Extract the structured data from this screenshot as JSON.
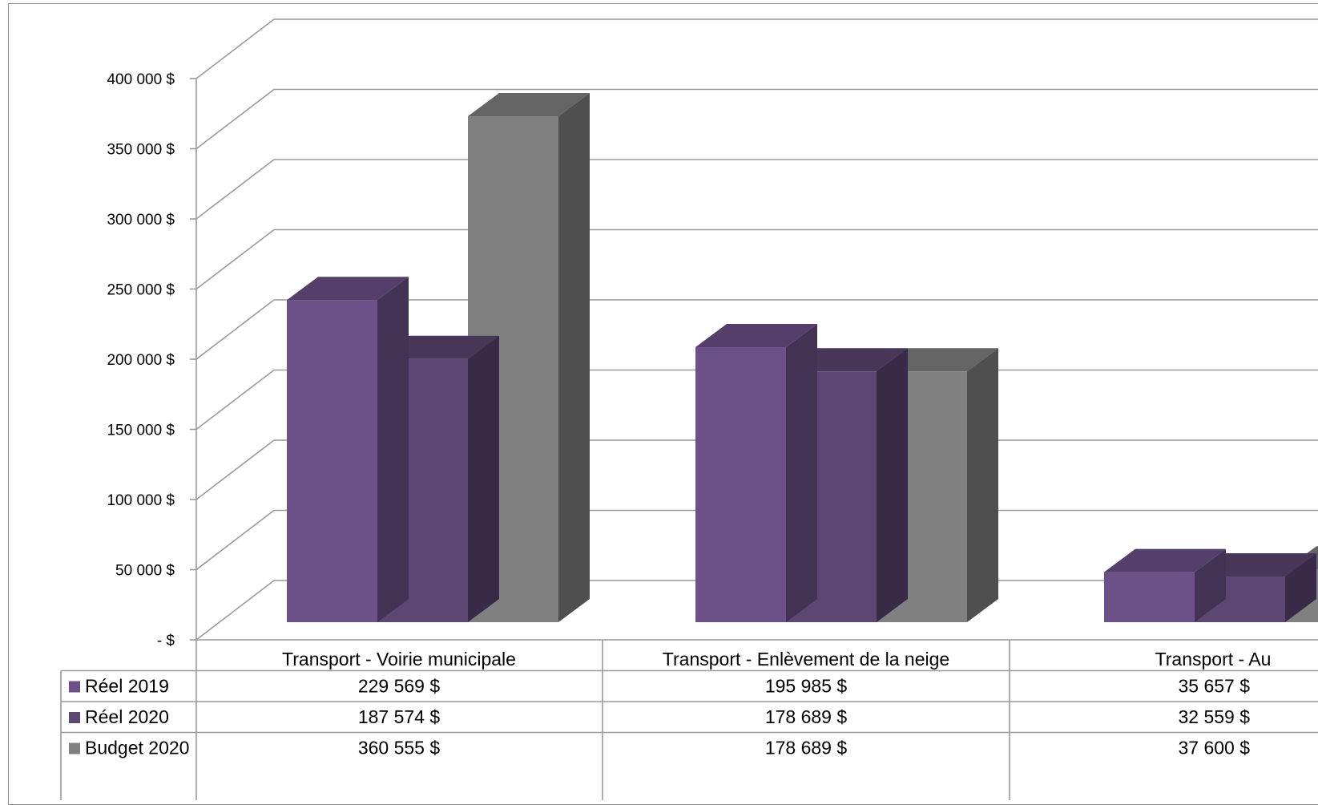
{
  "chart_data": {
    "type": "bar",
    "categories": [
      "Transport - Voirie municipale",
      "Transport - Enlèvement de la neige",
      "Transport - Au"
    ],
    "series": [
      {
        "name": "Réel 2019",
        "values": [
          229569,
          195985,
          35657
        ],
        "color": "#6b5187"
      },
      {
        "name": "Réel 2020",
        "values": [
          187574,
          178689,
          32559
        ],
        "color": "#5c4672"
      },
      {
        "name": "Budget 2020",
        "values": [
          360555,
          178689,
          37600
        ],
        "color": "#808080"
      }
    ],
    "data_table": [
      [
        "229 569  $",
        "195 985  $",
        "35 657  $"
      ],
      [
        "187 574  $",
        "178 689  $",
        "32 559  $"
      ],
      [
        "360 555  $",
        "178 689  $",
        "37 600  $"
      ]
    ],
    "y_ticks": [
      {
        "value": 0,
        "label": "-  $"
      },
      {
        "value": 50000,
        "label": "50 000  $"
      },
      {
        "value": 100000,
        "label": "100 000  $"
      },
      {
        "value": 150000,
        "label": "150 000  $"
      },
      {
        "value": 200000,
        "label": "200 000  $"
      },
      {
        "value": 250000,
        "label": "250 000  $"
      },
      {
        "value": 300000,
        "label": "300 000  $"
      },
      {
        "value": 350000,
        "label": "350 000  $"
      },
      {
        "value": 400000,
        "label": "400 000  $"
      }
    ],
    "ylim": [
      0,
      400000
    ],
    "grid": true,
    "style": "3d-clustered-column",
    "legend": "data-table"
  }
}
